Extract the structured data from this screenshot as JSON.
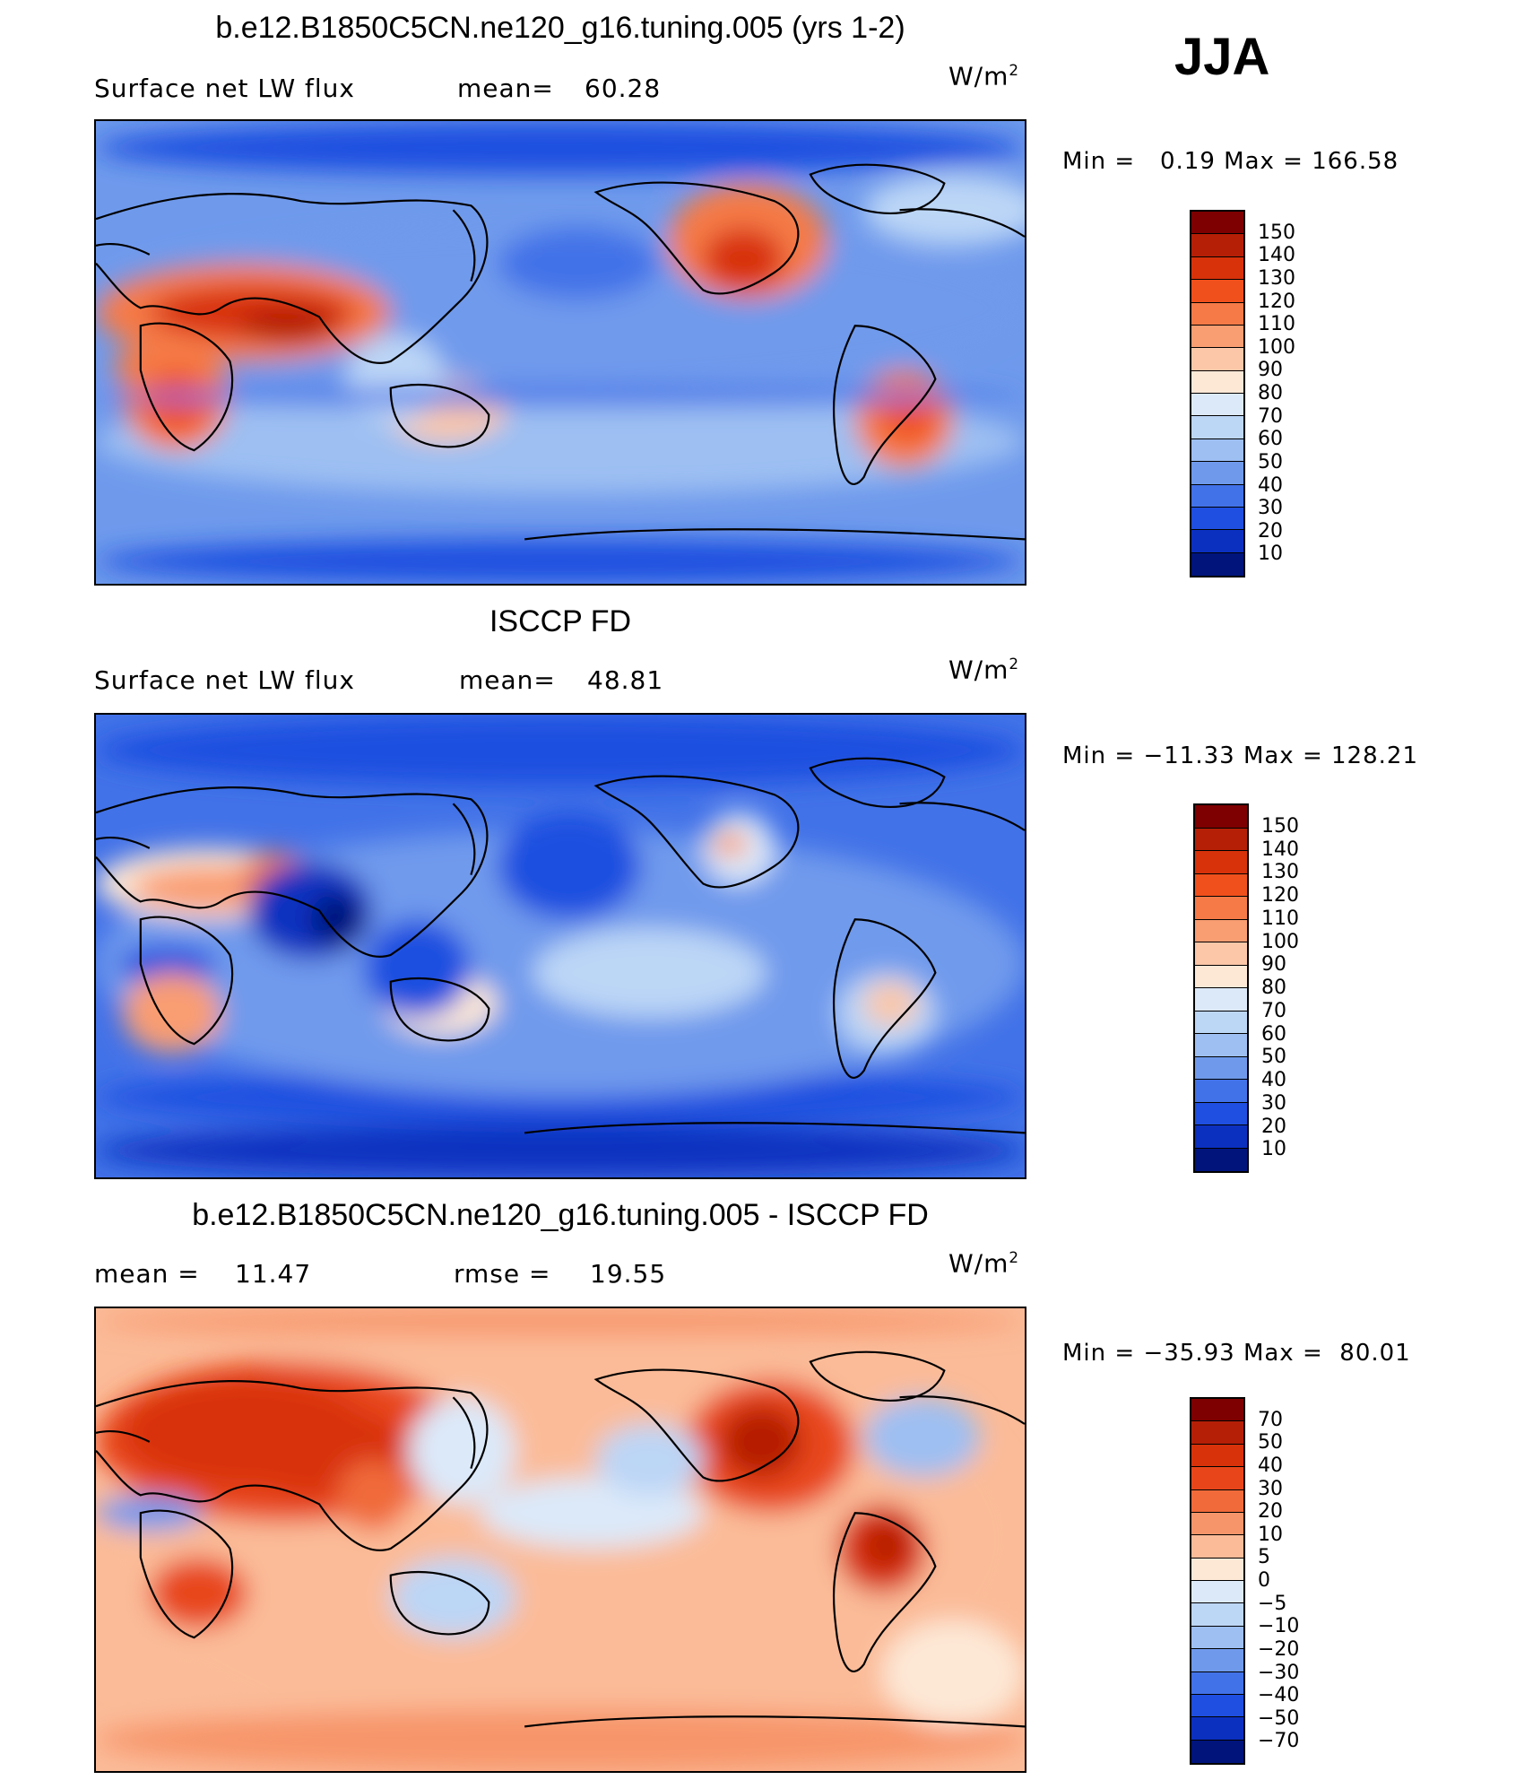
{
  "season": "JJA",
  "unit_base": "W/m",
  "unit_exp": "2",
  "panels": [
    {
      "title": "b.e12.B1850C5CN.ne120_g16.tuning.005 (yrs 1-2)",
      "left_label": "Surface net LW flux",
      "stat1_label": "mean=",
      "stat1_value": "60.28",
      "stat2_label": "",
      "stat2_value": "",
      "min_label": "Min =",
      "min_value": "0.19",
      "max_label": "Max =",
      "max_value": "166.58",
      "levels": [
        "150",
        "140",
        "130",
        "120",
        "110",
        "100",
        "90",
        "80",
        "70",
        "60",
        "50",
        "40",
        "30",
        "20",
        "10"
      ],
      "colors": [
        "#7e0000",
        "#b51f06",
        "#d8320a",
        "#f0501c",
        "#f57a47",
        "#f99d72",
        "#fbc7a8",
        "#fde8d6",
        "#dce9f9",
        "#bcd6f6",
        "#9dbff2",
        "#6f9aec",
        "#4272e8",
        "#1f4fe0",
        "#0b30c0",
        "#00147c"
      ],
      "map_style": "model"
    },
    {
      "title": "ISCCP FD",
      "left_label": "Surface net LW flux",
      "stat1_label": "mean=",
      "stat1_value": "48.81",
      "stat2_label": "",
      "stat2_value": "",
      "min_label": "Min =",
      "min_value": "−11.33",
      "max_label": "Max =",
      "max_value": "128.21",
      "levels": [
        "150",
        "140",
        "130",
        "120",
        "110",
        "100",
        "90",
        "80",
        "70",
        "60",
        "50",
        "40",
        "30",
        "20",
        "10"
      ],
      "colors": [
        "#7e0000",
        "#b51f06",
        "#d8320a",
        "#f0501c",
        "#f57a47",
        "#f99d72",
        "#fbc7a8",
        "#fde8d6",
        "#dce9f9",
        "#bcd6f6",
        "#9dbff2",
        "#6f9aec",
        "#4272e8",
        "#1f4fe0",
        "#0b30c0",
        "#00147c"
      ],
      "map_style": "obs"
    },
    {
      "title": "b.e12.B1850C5CN.ne120_g16.tuning.005 - ISCCP FD",
      "left_label": "mean =",
      "stat1_label": "11.47",
      "stat1_value": "",
      "stat2_label": "rmse =",
      "stat2_value": "19.55",
      "min_label": "Min =",
      "min_value": "−35.93",
      "max_label": "Max =",
      "max_value": "80.01",
      "levels": [
        "70",
        "50",
        "40",
        "30",
        "20",
        "10",
        "5",
        "0",
        "−5",
        "−10",
        "−20",
        "−30",
        "−40",
        "−50",
        "−70"
      ],
      "colors": [
        "#7e0000",
        "#b51f06",
        "#d8320a",
        "#e8461a",
        "#f06a3a",
        "#f7956a",
        "#fbbb98",
        "#fde8d6",
        "#dce9f9",
        "#bcd6f6",
        "#9dbff2",
        "#6f9aec",
        "#4272e8",
        "#1f4fe0",
        "#0b30c0",
        "#00147c"
      ],
      "map_style": "diff"
    }
  ]
}
